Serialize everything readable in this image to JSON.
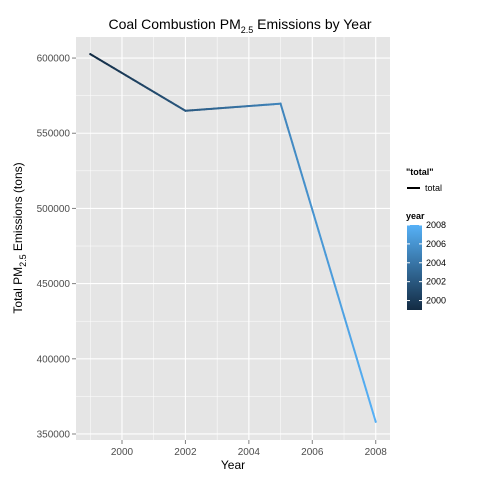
{
  "chart_data": {
    "type": "line",
    "title": "Coal Combustion PM",
    "title_subscript": "2.5",
    "title_suffix": " Emissions by Year",
    "xlabel": "Year",
    "ylabel_prefix": "Total PM",
    "ylabel_subscript": "2.5",
    "ylabel_suffix": " Emissions (tons)",
    "x": [
      1999,
      2002,
      2005,
      2008
    ],
    "series": [
      {
        "name": "total",
        "values": [
          602624,
          564940,
          569655,
          358084
        ]
      }
    ],
    "xlim": [
      1998.55,
      2008.45
    ],
    "ylim": [
      346000,
      614000
    ],
    "x_ticks": [
      2000,
      2002,
      2004,
      2006,
      2008
    ],
    "x_tick_labels": [
      "2000",
      "2002",
      "2004",
      "2006",
      "2008"
    ],
    "y_ticks": [
      350000,
      400000,
      450000,
      500000,
      550000,
      600000
    ],
    "y_tick_labels": [
      "350000",
      "400000",
      "450000",
      "500000",
      "550000",
      "600000"
    ],
    "grid": true,
    "colors": {
      "panel_bg": "#e5e5e5",
      "grid": "#ffffff",
      "color_low": "#132b43",
      "color_high": "#56b1f7",
      "line_legend": "#000000"
    },
    "legend": {
      "placement": "right",
      "line_title": "\"total\"",
      "line_label": "total",
      "color_title": "year",
      "color_range": [
        1999,
        2008
      ],
      "color_ticks": [
        2008,
        2006,
        2004,
        2002,
        2000
      ],
      "color_tick_labels": [
        "2008",
        "2006",
        "2004",
        "2002",
        "2000"
      ]
    }
  }
}
